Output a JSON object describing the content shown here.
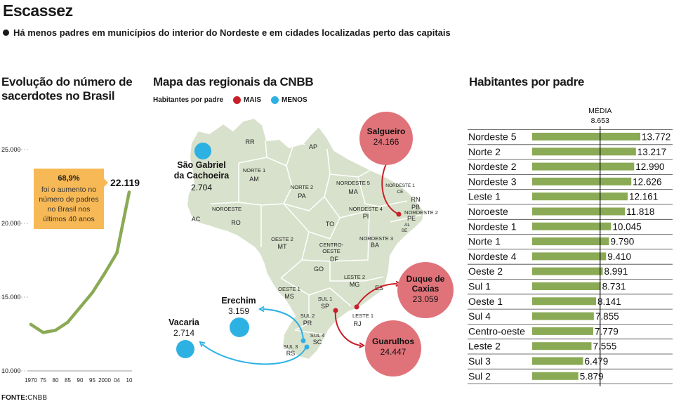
{
  "title": "Escassez",
  "subtitle": "Há menos padres em municípios do interior do Nordeste e em cidades localizadas perto das capitais",
  "source_label": "FONTE:",
  "source_name": "CNBB",
  "colors": {
    "line": "#8aaa55",
    "callout": "#f7b955",
    "red": "#c8202a",
    "red_circle": "#e0737a",
    "blue": "#2db1e3",
    "map": "#d8e1cb",
    "bar": "#8aaa55"
  },
  "map_section": {
    "title": "Mapa das regionais da CNBB",
    "legend_title": "Habitantes por padre",
    "legend_more": "MAIS",
    "legend_less": "MENOS",
    "regions": [
      "RR",
      "AP",
      "NORTE 1",
      "AM",
      "NORTE 2",
      "PA",
      "NORDESTE 5",
      "MA",
      "NORDESTE 1",
      "CE",
      "RN",
      "PB",
      "NORDESTE 2",
      "PE",
      "AL",
      "SE",
      "NORDESTE 4",
      "PI",
      "AC",
      "NOROESTE",
      "RO",
      "TO",
      "NORDESTE 3",
      "BA",
      "OESTE 2",
      "MT",
      "CENTRO-",
      "OESTE",
      "DF",
      "GO",
      "LESTE 2",
      "MG",
      "ES",
      "OESTE 1",
      "MS",
      "SUL 1",
      "SP",
      "LESTE 1",
      "RJ",
      "SUL 2",
      "PR",
      "SUL 4",
      "SC",
      "SUL 3",
      "RS"
    ],
    "more": [
      {
        "name": "Salgueiro",
        "value": "24.166"
      },
      {
        "name": "Duque de",
        "name2": "Caxias",
        "value": "23.059"
      },
      {
        "name": "Guarulhos",
        "value": "24.447"
      }
    ],
    "less": [
      {
        "name": "São Gabriel",
        "name2": "da Cachoeira",
        "value": "2.704"
      },
      {
        "name": "Erechim",
        "value": "3.159"
      },
      {
        "name": "Vacaria",
        "value": "2.714"
      }
    ]
  },
  "chart_data": [
    {
      "type": "line",
      "title": "Evolução do número de sacerdotes no Brasil",
      "x": [
        "1970",
        "75",
        "80",
        "85",
        "90",
        "95",
        "2000",
        "04",
        "10"
      ],
      "values": [
        13150,
        12600,
        12750,
        13300,
        14300,
        15300,
        16600,
        18000,
        22119
      ],
      "ylim": [
        10000,
        25000
      ],
      "yticks": [
        "10.000",
        "15.000",
        "20.000",
        "25.000"
      ],
      "end_label": "22.119",
      "annotation": {
        "highlight": "68,9%",
        "lines": [
          "foi o aumento no",
          "número de padres",
          "no Brasil nos",
          "últimos 40 anos"
        ]
      }
    },
    {
      "type": "bar",
      "title": "Habitantes por padre",
      "reference_label": "MÉDIA",
      "reference_value_label": "8.653",
      "reference_value": 8653,
      "xlim": [
        0,
        13772
      ],
      "categories": [
        "Nordeste 5",
        "Norte 2",
        "Nordeste 2",
        "Nordeste 3",
        "Leste 1",
        "Noroeste",
        "Nordeste 1",
        "Norte 1",
        "Nordeste 4",
        "Oeste 2",
        "Sul 1",
        "Oeste 1",
        "Sul 4",
        "Centro-oeste",
        "Leste 2",
        "Sul 3",
        "Sul 2"
      ],
      "values": [
        13772,
        13217,
        12990,
        12626,
        12161,
        11818,
        10045,
        9790,
        9410,
        8991,
        8731,
        8141,
        7855,
        7779,
        7555,
        6479,
        5879
      ],
      "value_labels": [
        "13.772",
        "13.217",
        "12.990",
        "12.626",
        "12.161",
        "11.818",
        "10.045",
        "9.790",
        "9.410",
        "8.991",
        "8.731",
        "8.141",
        "7.855",
        "7.779",
        "7.555",
        "6.479",
        "5.879"
      ]
    }
  ]
}
